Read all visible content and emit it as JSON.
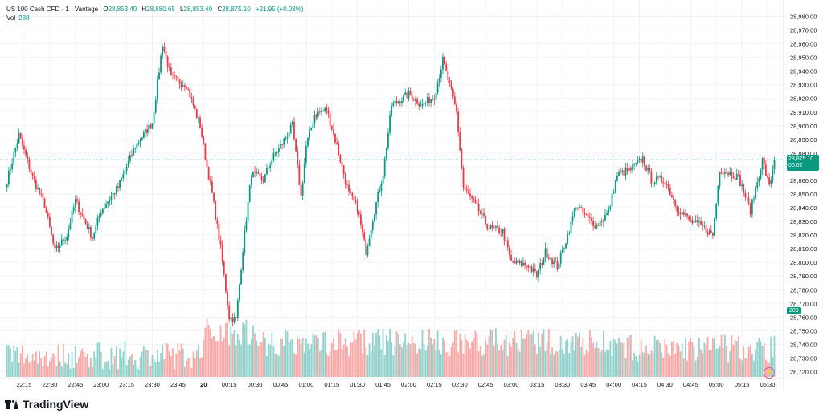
{
  "header": {
    "symbol": "US 100 Cash CFD · 1 · Vantage",
    "o_label": "O",
    "o_value": "28,853.40",
    "h_label": "H",
    "h_value": "28,880.65",
    "l_label": "L",
    "l_value": "28,853.40",
    "c_label": "C",
    "c_value": "28,875.10",
    "change": "+21.95 (+0.08%)",
    "vol_label": "Vol",
    "vol_value": "288"
  },
  "price_tag": {
    "price": "28,875.10",
    "countdown": "00:02"
  },
  "vol_tag": "288",
  "brand": "TradingView",
  "colors": {
    "up": "#089981",
    "down": "#f23645",
    "vol_up": "#92d2cc",
    "vol_down": "#f7a9a7",
    "grid": "#f0f3fa"
  },
  "chart_data": {
    "type": "candlestick",
    "title": "",
    "y_ticks": [
      "28,980.00",
      "28,970.00",
      "28,960.00",
      "28,950.00",
      "28,940.00",
      "28,930.00",
      "28,920.00",
      "28,910.00",
      "28,900.00",
      "28,890.00",
      "28,880.00",
      "28,870.00",
      "28,860.00",
      "28,850.00",
      "28,840.00",
      "28,830.00",
      "28,820.00",
      "28,810.00",
      "28,800.00",
      "28,790.00",
      "28,780.00",
      "28,770.00",
      "28,760.00",
      "28,750.00",
      "28,740.00",
      "28,730.00",
      "28,720.00"
    ],
    "ylim": [
      28715,
      28985
    ],
    "x_ticks": [
      "22:15",
      "22:30",
      "22:45",
      "23:00",
      "23:15",
      "23:30",
      "23:45",
      "20",
      "00:15",
      "00:30",
      "00:45",
      "01:00",
      "01:15",
      "01:30",
      "01:45",
      "02:00",
      "02:15",
      "02:30",
      "02:45",
      "03:00",
      "03:15",
      "03:30",
      "03:45",
      "04:00",
      "04:15",
      "04:30",
      "04:45",
      "05:00",
      "05:15",
      "05:30"
    ],
    "anchors": [
      [
        "22:05",
        28860
      ],
      [
        "22:12",
        28893
      ],
      [
        "22:20",
        28862
      ],
      [
        "22:27",
        28842
      ],
      [
        "22:33",
        28808
      ],
      [
        "22:40",
        28820
      ],
      [
        "22:45",
        28845
      ],
      [
        "22:55",
        28818
      ],
      [
        "23:00",
        28838
      ],
      [
        "23:10",
        28855
      ],
      [
        "23:20",
        28885
      ],
      [
        "23:30",
        28902
      ],
      [
        "23:36",
        28960
      ],
      [
        "23:41",
        28935
      ],
      [
        "23:50",
        28930
      ],
      [
        "23:58",
        28900
      ],
      [
        "00:02",
        28870
      ],
      [
        "00:05",
        28850
      ],
      [
        "00:10",
        28810
      ],
      [
        "00:15",
        28760
      ],
      [
        "00:19",
        28758
      ],
      [
        "00:23",
        28810
      ],
      [
        "00:28",
        28865
      ],
      [
        "00:35",
        28860
      ],
      [
        "00:40",
        28876
      ],
      [
        "00:45",
        28885
      ],
      [
        "00:52",
        28900
      ],
      [
        "00:57",
        28848
      ],
      [
        "01:00",
        28885
      ],
      [
        "01:05",
        28908
      ],
      [
        "01:12",
        28912
      ],
      [
        "01:18",
        28885
      ],
      [
        "01:25",
        28850
      ],
      [
        "01:30",
        28840
      ],
      [
        "01:35",
        28808
      ],
      [
        "01:40",
        28838
      ],
      [
        "01:45",
        28865
      ],
      [
        "01:50",
        28915
      ],
      [
        "02:00",
        28923
      ],
      [
        "02:08",
        28915
      ],
      [
        "02:15",
        28922
      ],
      [
        "02:20",
        28948
      ],
      [
        "02:28",
        28910
      ],
      [
        "02:32",
        28855
      ],
      [
        "02:40",
        28840
      ],
      [
        "02:47",
        28825
      ],
      [
        "02:55",
        28823
      ],
      [
        "03:00",
        28800
      ],
      [
        "03:10",
        28798
      ],
      [
        "03:15",
        28790
      ],
      [
        "03:20",
        28808
      ],
      [
        "03:27",
        28797
      ],
      [
        "03:33",
        28820
      ],
      [
        "03:38",
        28842
      ],
      [
        "03:45",
        28832
      ],
      [
        "03:50",
        28827
      ],
      [
        "03:57",
        28837
      ],
      [
        "04:02",
        28864
      ],
      [
        "04:10",
        28868
      ],
      [
        "04:17",
        28876
      ],
      [
        "04:22",
        28860
      ],
      [
        "04:30",
        28860
      ],
      [
        "04:37",
        28840
      ],
      [
        "04:45",
        28830
      ],
      [
        "04:52",
        28826
      ],
      [
        "04:58",
        28820
      ],
      [
        "05:02",
        28868
      ],
      [
        "05:09",
        28865
      ],
      [
        "05:13",
        28862
      ],
      [
        "05:20",
        28838
      ],
      [
        "05:27",
        28875
      ],
      [
        "05:31",
        28855
      ],
      [
        "05:34",
        28875
      ]
    ],
    "last_price": 28875.1,
    "volume": {
      "last": 288
    }
  }
}
